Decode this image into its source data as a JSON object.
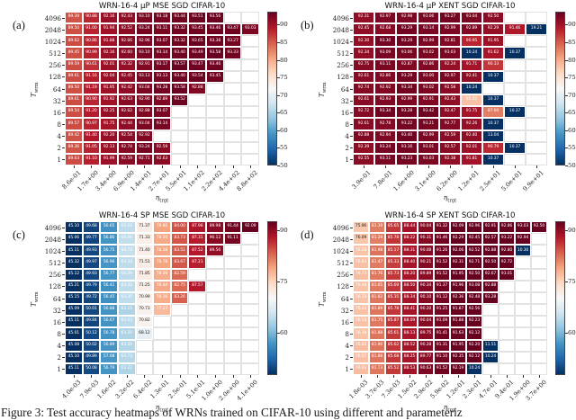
{
  "caption": "Figure 3: Test accuracy heatmaps of WRNs trained on CIFAR-10 using different and parameteriz",
  "colors": {
    "background": "#ffffff",
    "cmap_name": "RdBu_r",
    "cmap_high": "#67001f",
    "cmap_mid": "#f7f7f7",
    "cmap_low": "#053061"
  },
  "chart_data": [
    {
      "type": "heatmap",
      "letter": "(a)",
      "title": "WRN-16-4 μP MSE SGD CIFAR-10",
      "xlabel": "η",
      "xlabel_sub": "trgt",
      "ylabel": "T",
      "ylabel_sub": "wrm",
      "x_ticklabels": [
        "8.6e-01",
        "1.7e+00",
        "3.4e+00",
        "6.9e+00",
        "1.4e+01",
        "2.7e+01",
        "5.5e+01",
        "1.1e+02",
        "2.2e+02",
        "4.4e+02",
        "8.8e+02"
      ],
      "y_ticklabels": [
        "4096",
        "2048",
        "1024",
        "512",
        "256",
        "128",
        "64",
        "32",
        "16",
        "8",
        "4",
        "2",
        "1"
      ],
      "vmin": 70,
      "vmax": 93.7,
      "colorbar": {
        "ticks": [
          90,
          85,
          80,
          75,
          70,
          65,
          60,
          55,
          50
        ],
        "top_value": 93.7,
        "bottom_value": 50
      },
      "values": [
        [
          89.39,
          90.88,
          92.16,
          92.43,
          93.1,
          93.18,
          93.44,
          93.51,
          93.56,
          null,
          null
        ],
        [
          89.5,
          91.0,
          91.94,
          92.52,
          93.24,
          93.11,
          93.32,
          93.45,
          93.46,
          93.47,
          93.03
        ],
        [
          89.62,
          90.86,
          91.88,
          92.66,
          92.96,
          93.07,
          93.32,
          93.65,
          93.38,
          93.27,
          null
        ],
        [
          89.45,
          90.99,
          92.16,
          92.6,
          93.1,
          93.14,
          93.4,
          93.49,
          93.58,
          93.33,
          null
        ],
        [
          89.59,
          90.61,
          92.01,
          92.32,
          92.91,
          93.17,
          93.57,
          93.47,
          93.46,
          null,
          null
        ],
        [
          89.61,
          91.16,
          92.04,
          92.45,
          93.13,
          93.13,
          93.4,
          93.54,
          93.45,
          null,
          null
        ],
        [
          89.5,
          91.19,
          91.95,
          92.42,
          93.04,
          93.28,
          93.58,
          92.88,
          null,
          null,
          null
        ],
        [
          89.61,
          90.9,
          91.92,
          92.63,
          92.9,
          92.89,
          93.52,
          null,
          null,
          null,
          null
        ],
        [
          89.54,
          91.2,
          92.25,
          92.62,
          92.88,
          93.07,
          null,
          null,
          null,
          null,
          null
        ],
        [
          89.57,
          90.97,
          91.75,
          92.44,
          93.04,
          93.14,
          null,
          null,
          null,
          null,
          null
        ],
        [
          89.42,
          91.4,
          92.2,
          92.54,
          92.92,
          null,
          null,
          null,
          null,
          null,
          null
        ],
        [
          89.36,
          91.05,
          92.13,
          92.74,
          93.24,
          92.59,
          null,
          null,
          null,
          null,
          null
        ],
        [
          89.63,
          91.1,
          91.99,
          92.59,
          92.71,
          92.63,
          null,
          null,
          null,
          null,
          null
        ]
      ]
    },
    {
      "type": "heatmap",
      "letter": "(b)",
      "title": "WRN-16-4 μP XENT SGD CIFAR-10",
      "xlabel": "η",
      "xlabel_sub": "trgt",
      "ylabel": "T",
      "ylabel_sub": "wrm",
      "x_ticklabels": [
        "3.9e-01",
        "7.8e-01",
        "1.6e+00",
        "3.1e+00",
        "6.2e+00",
        "1.2e+01",
        "2.5e+01",
        "5.0e+01",
        "9.9e+01"
      ],
      "y_ticklabels": [
        "4096",
        "2048",
        "1024",
        "512",
        "256",
        "128",
        "64",
        "32",
        "16",
        "8",
        "4",
        "2",
        "1"
      ],
      "vmin": 70,
      "vmax": 93.7,
      "colorbar": {
        "ticks": [
          90,
          85,
          80,
          75,
          70,
          65,
          60,
          55,
          50
        ],
        "top_value": 93.7,
        "bottom_value": 50
      },
      "values": [
        [
          92.31,
          92.97,
          92.98,
          93.06,
          93.27,
          93.04,
          92.5,
          null,
          null
        ],
        [
          92.45,
          92.68,
          93.29,
          93.14,
          92.99,
          92.89,
          92.29,
          91.46,
          19.21
        ],
        [
          92.3,
          93.3,
          93.29,
          92.99,
          92.81,
          90.95,
          91.95,
          null,
          null
        ],
        [
          92.34,
          93.09,
          93.06,
          93.02,
          93.03,
          10.24,
          91.62,
          10.37,
          null
        ],
        [
          92.75,
          93.11,
          92.87,
          92.86,
          92.24,
          91.71,
          90.33,
          null,
          null
        ],
        [
          92.61,
          92.86,
          93.29,
          93.0,
          92.97,
          92.41,
          10.37,
          null,
          null
        ],
        [
          92.74,
          92.92,
          93.34,
          93.02,
          92.58,
          10.24,
          null,
          null,
          null
        ],
        [
          92.61,
          92.93,
          92.99,
          92.91,
          92.43,
          85.32,
          10.37,
          null,
          null
        ],
        [
          92.72,
          93.34,
          93.28,
          93.42,
          92.47,
          91.75,
          87.94,
          10.37,
          null
        ],
        [
          92.61,
          92.78,
          93.22,
          93.21,
          92.77,
          92.26,
          10.37,
          null,
          null
        ],
        [
          92.88,
          92.94,
          93.4,
          92.99,
          92.59,
          92.4,
          13.04,
          null,
          null
        ],
        [
          92.39,
          93.24,
          93.16,
          93.01,
          92.57,
          92.01,
          90.79,
          10.37,
          null
        ],
        [
          92.55,
          93.11,
          93.23,
          93.03,
          92.38,
          91.81,
          10.37,
          null,
          null
        ]
      ]
    },
    {
      "type": "heatmap",
      "letter": "(c)",
      "title": "WRN-16-4 SP MSE SGD CIFAR-10",
      "xlabel": "η",
      "xlabel_sub": "trgt",
      "ylabel": "T",
      "ylabel_sub": "wrm",
      "x_ticklabels": [
        "4.0e-03",
        "7.9e-03",
        "1.6e-02",
        "3.2e-02",
        "6.4e-02",
        "1.3e-01",
        "2.5e-01",
        "5.1e-01",
        "1.0e+00",
        "2.0e+00",
        "4.1e+00"
      ],
      "y_ticklabels": [
        "4096",
        "2048",
        "1024",
        "512",
        "256",
        "128",
        "64",
        "32",
        "16",
        "8",
        "4",
        "2",
        "1"
      ],
      "vmin": 48,
      "vmax": 92,
      "colorbar": {
        "ticks": [
          90,
          75,
          60
        ],
        "top_value": 92.5,
        "bottom_value": 47.5
      },
      "values": [
        [
          45.1,
          49.68,
          56.65,
          64.22,
          71.37,
          78.86,
          84.0,
          87.98,
          89.98,
          91.44,
          92.09
        ],
        [
          45.06,
          49.77,
          56.86,
          64.56,
          71.33,
          78.5,
          83.73,
          87.31,
          90.12,
          91.11,
          null
        ],
        [
          45.11,
          49.93,
          56.75,
          64.74,
          71.4,
          78.58,
          83.51,
          87.52,
          89.56,
          null,
          null
        ],
        [
          45.32,
          49.97,
          56.96,
          64.34,
          71.51,
          78.78,
          83.67,
          87.21,
          null,
          null,
          null
        ],
        [
          45.12,
          49.93,
          56.77,
          64.29,
          71.85,
          78.09,
          82.59,
          null,
          null,
          null,
          null
        ],
        [
          45.21,
          49.79,
          56.41,
          64.32,
          71.25,
          78.44,
          82.75,
          87.57,
          null,
          null,
          null
        ],
        [
          45.15,
          49.72,
          56.45,
          64.35,
          70.99,
          78.16,
          83.26,
          null,
          null,
          null,
          null
        ],
        [
          45.09,
          50.01,
          56.88,
          63.15,
          70.73,
          77.23,
          null,
          null,
          null,
          null,
          null
        ],
        [
          45.11,
          49.84,
          56.67,
          64.03,
          70.82,
          null,
          null,
          null,
          null,
          null,
          null
        ],
        [
          45.01,
          50.12,
          56.78,
          63.2,
          68.12,
          null,
          null,
          null,
          null,
          null,
          null
        ],
        [
          45.08,
          50.02,
          56.89,
          63.5,
          null,
          null,
          null,
          null,
          null,
          null,
          null
        ],
        [
          45.1,
          49.89,
          57.08,
          63.73,
          null,
          null,
          null,
          null,
          null,
          null,
          null
        ],
        [
          45.11,
          50.08,
          56.79,
          63.22,
          null,
          null,
          null,
          null,
          null,
          null,
          null
        ]
      ]
    },
    {
      "type": "heatmap",
      "letter": "(d)",
      "title": "WRN-16-4 SP XENT SGD CIFAR-10",
      "xlabel": "η",
      "xlabel_sub": "trgt",
      "ylabel": "T",
      "ylabel_sub": "wrm",
      "x_ticklabels": [
        "1.8e-03",
        "3.7e-03",
        "7.3e-03",
        "1.5e-02",
        "2.9e-02",
        "5.9e-02",
        "1.2e-01",
        "2.3e-01",
        "4.7e-01",
        "9.4e-01",
        "1.9e+00",
        "3.7e+00"
      ],
      "y_ticklabels": [
        "4096",
        "2048",
        "1024",
        "512",
        "256",
        "128",
        "64",
        "32",
        "16",
        "8",
        "4",
        "2",
        "1"
      ],
      "vmin": 48,
      "vmax": 92,
      "colorbar": {
        "ticks": [
          90,
          75,
          60
        ],
        "top_value": 92.5,
        "bottom_value": 47.5
      },
      "values": [
        [
          75.96,
          81.39,
          85.65,
          88.44,
          90.04,
          91.32,
          92.09,
          92.96,
          92.91,
          92.86,
          93.03,
          92.5
        ],
        [
          76.09,
          81.29,
          85.78,
          88.22,
          90.31,
          91.46,
          92.29,
          92.45,
          92.57,
          93.22,
          92.94,
          null
        ],
        [
          76.28,
          81.98,
          85.17,
          88.31,
          90.08,
          91.26,
          92.06,
          92.52,
          92.88,
          92.8,
          10.3,
          null
        ],
        [
          76.63,
          81.47,
          85.33,
          88.4,
          90.21,
          91.52,
          92.31,
          92.71,
          92.5,
          92.72,
          null,
          null
        ],
        [
          76.73,
          81.76,
          85.73,
          88.2,
          89.89,
          91.52,
          91.95,
          92.5,
          92.67,
          93.01,
          null,
          null
        ],
        [
          76.48,
          81.65,
          85.69,
          88.5,
          90.34,
          91.37,
          91.96,
          93.08,
          92.88,
          null,
          null,
          null
        ],
        [
          76.33,
          81.82,
          85.35,
          88.34,
          90.1,
          91.12,
          92.36,
          92.48,
          93.28,
          null,
          null,
          null
        ],
        [
          76.42,
          81.89,
          85.78,
          88.41,
          90.2,
          91.25,
          91.87,
          92.56,
          null,
          null,
          null,
          null
        ],
        [
          76.54,
          81.75,
          85.87,
          88.09,
          90.04,
          91.09,
          91.88,
          92.23,
          null,
          null,
          null,
          null
        ],
        [
          76.39,
          81.88,
          85.61,
          88.13,
          89.75,
          91.41,
          91.63,
          92.12,
          null,
          null,
          null,
          null
        ],
        [
          76.82,
          81.9,
          85.62,
          88.52,
          90.28,
          91.31,
          91.95,
          92.2,
          11.51,
          null,
          null,
          null
        ],
        [
          76.57,
          81.88,
          85.68,
          88.25,
          89.77,
          91.1,
          92.35,
          92.12,
          10.24,
          null,
          null,
          null
        ],
        [
          76.83,
          81.73,
          85.52,
          88.53,
          90.63,
          91.52,
          92.19,
          10.24,
          null,
          null,
          null,
          null
        ]
      ]
    }
  ]
}
